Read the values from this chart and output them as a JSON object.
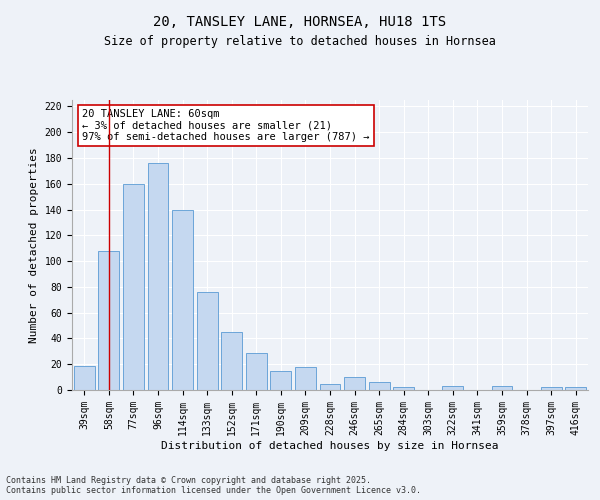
{
  "title": "20, TANSLEY LANE, HORNSEA, HU18 1TS",
  "subtitle": "Size of property relative to detached houses in Hornsea",
  "xlabel": "Distribution of detached houses by size in Hornsea",
  "ylabel": "Number of detached properties",
  "categories": [
    "39sqm",
    "58sqm",
    "77sqm",
    "96sqm",
    "114sqm",
    "133sqm",
    "152sqm",
    "171sqm",
    "190sqm",
    "209sqm",
    "228sqm",
    "246sqm",
    "265sqm",
    "284sqm",
    "303sqm",
    "322sqm",
    "341sqm",
    "359sqm",
    "378sqm",
    "397sqm",
    "416sqm"
  ],
  "values": [
    19,
    108,
    160,
    176,
    140,
    76,
    45,
    29,
    15,
    18,
    5,
    10,
    6,
    2,
    0,
    3,
    0,
    3,
    0,
    2,
    2
  ],
  "bar_color": "#c5d8f0",
  "bar_edge_color": "#5a9bd4",
  "annotation_text": "20 TANSLEY LANE: 60sqm\n← 3% of detached houses are smaller (21)\n97% of semi-detached houses are larger (787) →",
  "annotation_box_color": "#ffffff",
  "annotation_box_edge_color": "#cc0000",
  "vline_x": 1,
  "vline_color": "#cc0000",
  "ylim": [
    0,
    225
  ],
  "yticks": [
    0,
    20,
    40,
    60,
    80,
    100,
    120,
    140,
    160,
    180,
    200,
    220
  ],
  "footnote": "Contains HM Land Registry data © Crown copyright and database right 2025.\nContains public sector information licensed under the Open Government Licence v3.0.",
  "bg_color": "#eef2f8",
  "grid_color": "#ffffff",
  "title_fontsize": 10,
  "subtitle_fontsize": 8.5,
  "xlabel_fontsize": 8,
  "ylabel_fontsize": 8,
  "tick_fontsize": 7,
  "annotation_fontsize": 7.5,
  "footnote_fontsize": 6
}
